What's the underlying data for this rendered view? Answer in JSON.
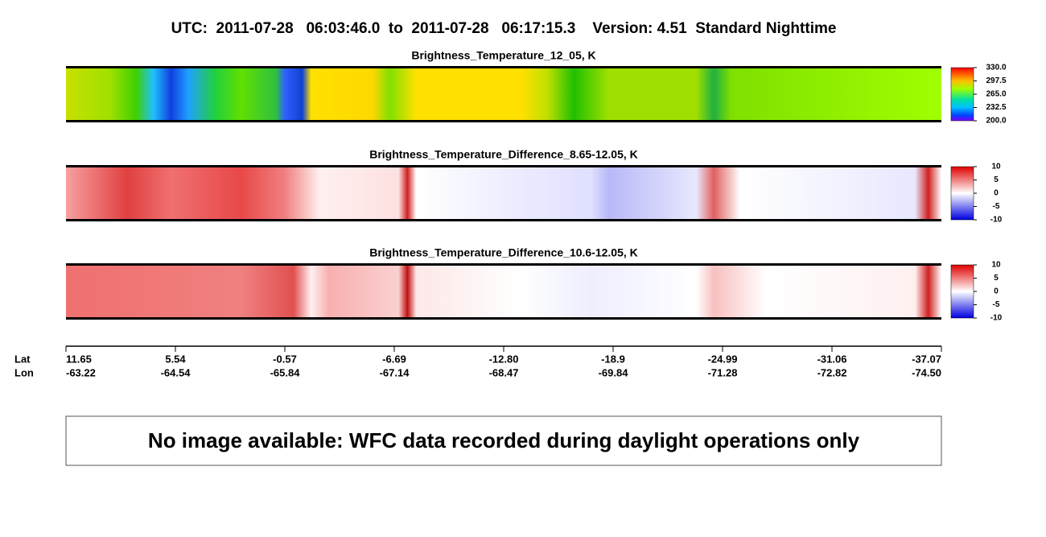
{
  "header": {
    "title": "UTC:  2011-07-28   06:03:46.0  to  2011-07-28   06:17:15.3    Version: 4.51  Standard Nighttime"
  },
  "panels": [
    {
      "title": "Brightness_Temperature_12_05, K",
      "colorbar_ticks": [
        {
          "value": 330,
          "label": "330.0"
        },
        297.5,
        {
          "value": 265,
          "label": "265.0"
        },
        232.5,
        {
          "value": 200,
          "label": "200.0"
        }
      ]
    },
    {
      "title": "Brightness_Temperature_Difference_8.65-12.05, K",
      "colorbar_ticks": [
        10,
        5,
        0,
        -5,
        -10
      ]
    },
    {
      "title": "Brightness_Temperature_Difference_10.6-12.05, K",
      "colorbar_ticks": [
        10,
        5,
        0,
        -5,
        -10
      ]
    }
  ],
  "axis": {
    "lat_label": "Lat",
    "lon_label": "Lon",
    "lat_ticks": [
      11.65,
      5.54,
      -0.57,
      -6.69,
      {
        "value": -12.8,
        "label": "-12.80"
      },
      -18.9,
      -24.99,
      -31.06,
      -37.07
    ],
    "lon_ticks": [
      -63.22,
      -64.54,
      -65.84,
      -67.14,
      -68.47,
      -69.84,
      -71.28,
      -72.82,
      {
        "value": -74.5,
        "label": "-74.50"
      }
    ]
  },
  "message": "No image available: WFC data recorded during daylight operations only"
}
